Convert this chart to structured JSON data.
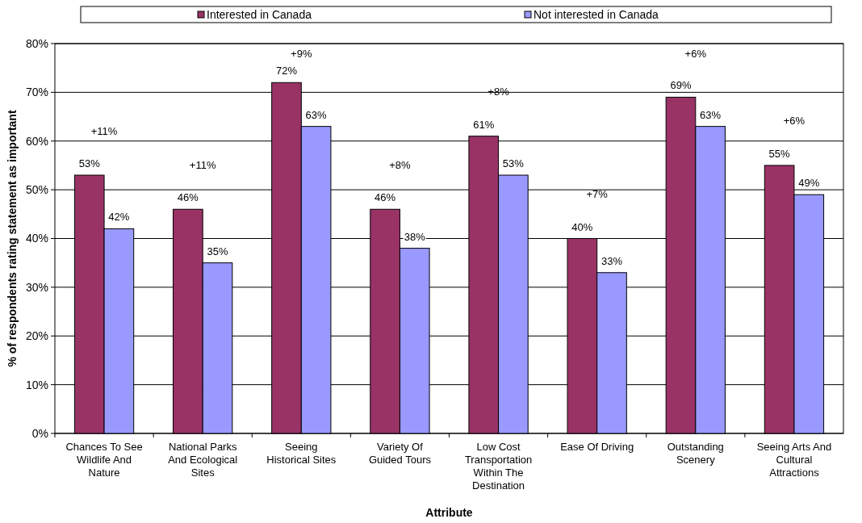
{
  "chart_data": {
    "type": "bar",
    "xlabel": "Attribute",
    "ylabel": "% of respondents rating statement as important",
    "categories": [
      "Chances To See Wildlife And Nature",
      "National Parks And Ecological Sites",
      "Seeing Historical Sites",
      "Variety Of Guided Tours",
      "Low Cost Transportation Within The Destination",
      "Ease Of Driving",
      "Outstanding Scenery",
      "Seeing Arts And Cultural Attractions"
    ],
    "series": [
      {
        "name": "Interested in Canada",
        "color": "#993366",
        "values": [
          53,
          46,
          72,
          46,
          61,
          40,
          69,
          55
        ],
        "value_labels": [
          "53%",
          "46%",
          "72%",
          "46%",
          "61%",
          "40%",
          "69%",
          "55%"
        ]
      },
      {
        "name": "Not interested in Canada",
        "color": "#9999ff",
        "values": [
          42,
          35,
          63,
          38,
          53,
          33,
          63,
          49
        ],
        "value_labels": [
          "42%",
          "35%",
          "63%",
          "38%",
          "53%",
          "33%",
          "63%",
          "49%"
        ]
      }
    ],
    "ylim": [
      0,
      80
    ],
    "yticks": [
      {
        "value": 0,
        "label": "0%"
      },
      {
        "value": 10,
        "label": "10%"
      },
      {
        "value": 20,
        "label": "20%"
      },
      {
        "value": 30,
        "label": "30%"
      },
      {
        "value": 40,
        "label": "40%"
      },
      {
        "value": 50,
        "label": "50%"
      },
      {
        "value": 60,
        "label": "60%"
      },
      {
        "value": 70,
        "label": "70%"
      },
      {
        "value": 80,
        "label": "80%"
      }
    ],
    "grid": "y",
    "legend": "top",
    "annotations": [
      "+11%",
      "+11%",
      "+9%",
      "+8%",
      "+8%",
      "+7%",
      "+6%",
      "+6%"
    ]
  }
}
